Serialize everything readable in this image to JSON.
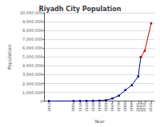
{
  "chart_data": {
    "type": "line",
    "title": "Riyadh City Population",
    "xlabel": "Year",
    "ylabel": "Population",
    "series": [
      {
        "color": "#00008b",
        "marker": "square",
        "x": [
          1862,
          1900,
          1910,
          1920,
          1930,
          1940,
          1950,
          1960,
          1970,
          1980,
          1990,
          2000,
          2004
        ],
        "values": [
          7500,
          19000,
          24000,
          30000,
          40000,
          60000,
          100000,
          300000,
          620000,
          1250000,
          1800000,
          2800000,
          5000000
        ]
      },
      {
        "color": "#cc0000",
        "marker": "square",
        "x": [
          2004,
          2010,
          2020
        ],
        "values": [
          5000000,
          5700000,
          8800000
        ]
      }
    ],
    "xlim": [
      1855,
      2025
    ],
    "xticks": [
      1862,
      1900,
      1910,
      1920,
      1930,
      1940,
      1950,
      1960,
      1970,
      1980,
      1990,
      2000,
      2004,
      2010,
      2020
    ],
    "ylim": [
      0,
      10000000
    ],
    "yticks": [
      0,
      {
        "value": 1000000,
        "label": "1,000,000"
      },
      {
        "value": 2000000,
        "label": "2,000,000"
      },
      {
        "value": 3000000,
        "label": "3,000,000"
      },
      {
        "value": 4000000,
        "label": "4,000,000"
      },
      {
        "value": 5000000,
        "label": "5,000,000"
      },
      {
        "value": 6000000,
        "label": "6,000,000"
      },
      {
        "value": 7000000,
        "label": "7,000,000"
      },
      {
        "value": 8000000,
        "label": "8,000,000"
      },
      {
        "value": 9000000,
        "label": "9,000,000"
      },
      {
        "value": 10000000,
        "label": "10,000,000"
      }
    ],
    "grid": true
  }
}
